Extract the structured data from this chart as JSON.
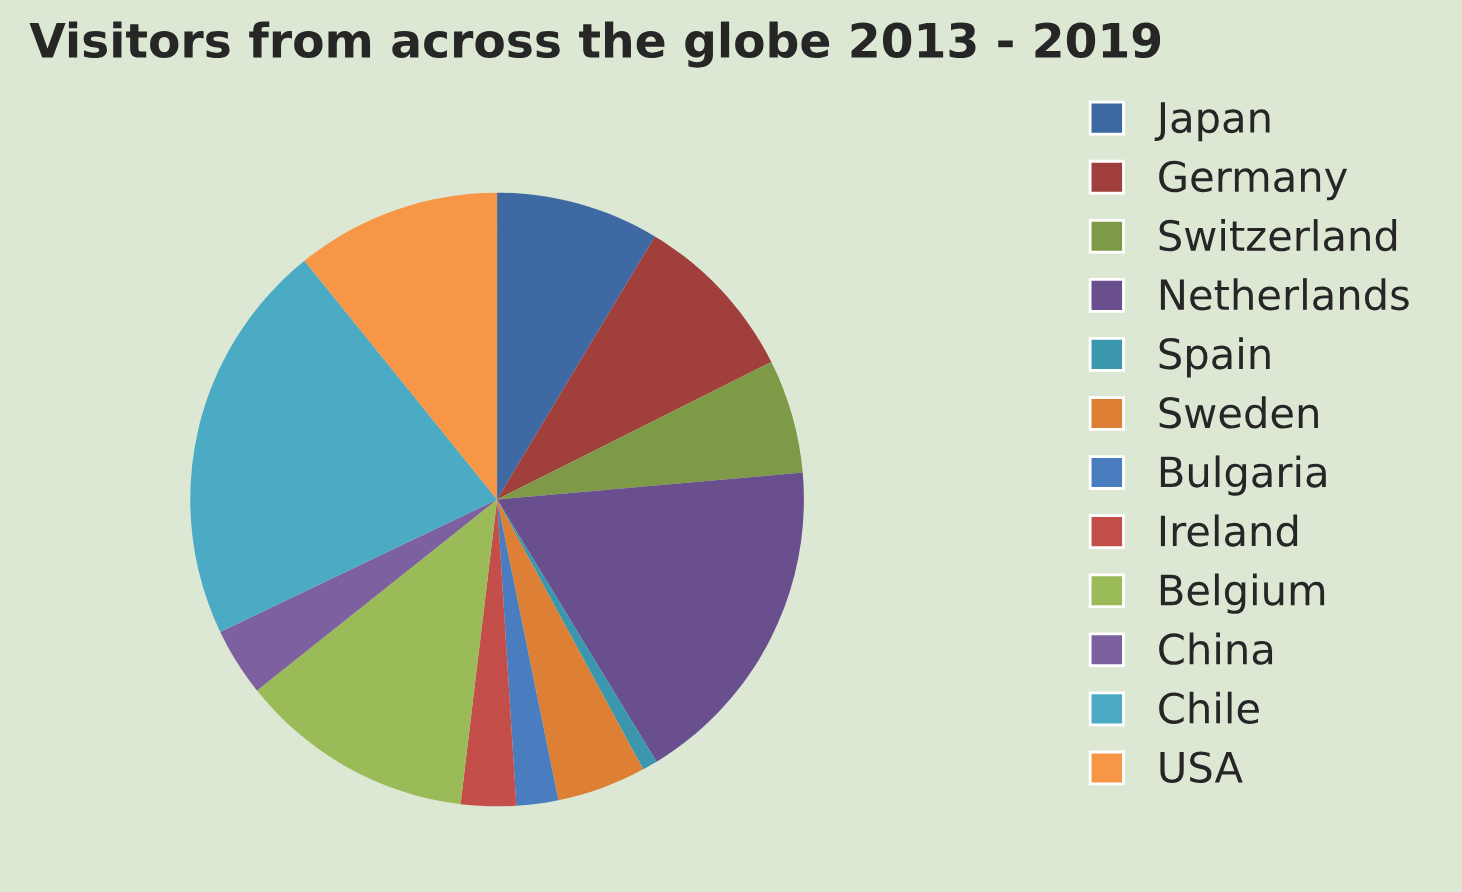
{
  "chart_data": {
    "type": "pie",
    "title": "Visitors from across the globe 2013 - 2019",
    "categories": [
      "Japan",
      "Germany",
      "Switzerland",
      "Netherlands",
      "Spain",
      "Sweden",
      "Bulgaria",
      "Ireland",
      "Belgium",
      "China",
      "Chile",
      "USA"
    ],
    "values": [
      8.6,
      9,
      6,
      17.7,
      0.8,
      4.7,
      2.2,
      2.9,
      12.4,
      3.6,
      21.3,
      10.8
    ],
    "colors": [
      "#3f69a3",
      "#a13f3c",
      "#7e9a47",
      "#694f8e",
      "#3a97ae",
      "#de7f36",
      "#4a7cc0",
      "#c44e4a",
      "#9abb58",
      "#7d60a0",
      "#4babc5",
      "#f79646"
    ],
    "legend": "right"
  }
}
